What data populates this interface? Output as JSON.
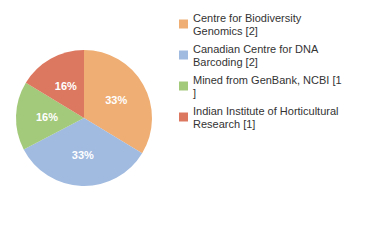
{
  "chart_data": {
    "type": "pie",
    "categories": [
      "Centre for Biodiversity Genomics [2]",
      "Canadian Centre for DNA Barcoding [2]",
      "Mined from GenBank, NCBI [1]",
      "Indian Institute of Horticultural Research [1]"
    ],
    "values": [
      33,
      33,
      16,
      16
    ],
    "value_labels": [
      "33%",
      "33%",
      "16%",
      "16%"
    ],
    "colors": [
      "#efae73",
      "#a0bae0",
      "#a3c97b",
      "#dd7860"
    ],
    "legend": "right",
    "data_labels": true
  }
}
